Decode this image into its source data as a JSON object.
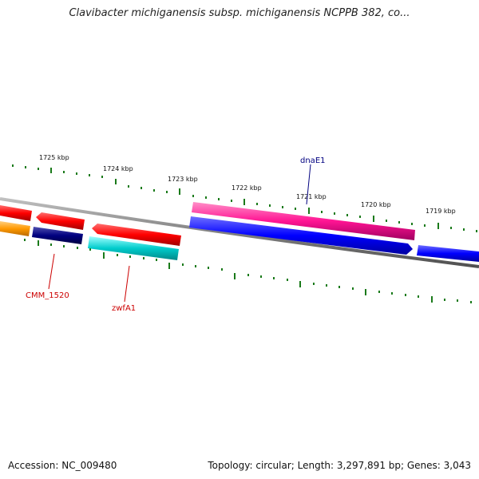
{
  "title": "Clavibacter michiganensis subsp. michiganensis NCPPB 382, co...",
  "footer": {
    "accession": "Accession: NC_009480",
    "summary": "Topology: circular; Length: 3,297,891 bp; Genes: 3,043"
  },
  "scale_labels": [
    "1725 kbp",
    "1724 kbp",
    "1723 kbp",
    "1722 kbp",
    "1721 kbp",
    "1720 kbp",
    "1719 kbp"
  ],
  "gene_labels": {
    "dnaE1": "dnaE1",
    "cmm1520": "CMM_1520",
    "zwfA1": "zwfA1"
  },
  "colors": {
    "backbone": "#808080",
    "tick": "#1a7a1a",
    "red": "#ff0000",
    "orange": "#ff9900",
    "navy": "#000080",
    "cyan": "#00cccc",
    "pink": "#ff1493",
    "blue": "#0000ff",
    "label_blue": "#000080",
    "label_red": "#cc0000"
  }
}
